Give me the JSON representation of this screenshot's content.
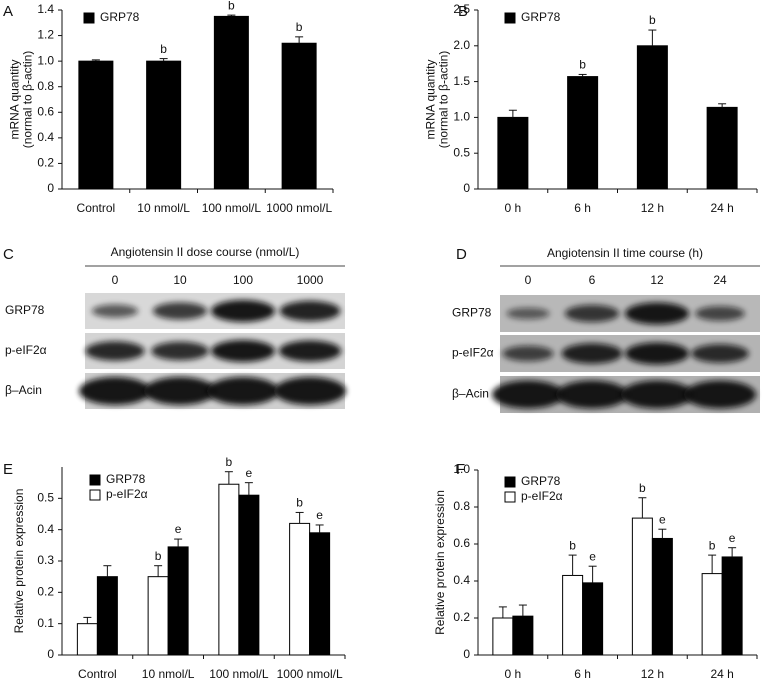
{
  "chart_data": [
    {
      "type": "bar",
      "label": "A",
      "ylabel": [
        "mRNA quantity",
        "(normal to β-actin)"
      ],
      "categories": [
        "Control",
        "10 nmol/L",
        "100 nmol/L",
        "1000 nmol/L"
      ],
      "series": [
        {
          "name": "GRP78",
          "color": "#000000",
          "values": [
            1.0,
            1.0,
            1.35,
            1.14
          ],
          "errors": [
            0.01,
            0.02,
            0.01,
            0.05
          ],
          "annotations": [
            null,
            "b",
            "b",
            "b"
          ]
        }
      ],
      "ylim": [
        0,
        1.4
      ],
      "yticks": [
        0,
        0.2,
        0.4,
        0.6,
        0.8,
        {
          "value": 1,
          "label": "1.0"
        },
        1.2,
        1.4
      ]
    },
    {
      "type": "bar",
      "label": "B",
      "ylabel": [
        "mRNA quantity",
        "(normal to β-actin)"
      ],
      "categories": [
        "0 h",
        "6 h",
        "12 h",
        "24 h"
      ],
      "series": [
        {
          "name": "GRP78",
          "color": "#000000",
          "values": [
            1.0,
            1.57,
            2.0,
            1.14
          ],
          "errors": [
            0.1,
            0.03,
            0.22,
            0.05
          ],
          "annotations": [
            null,
            "b",
            "b",
            null
          ]
        }
      ],
      "ylim": [
        0,
        2.5
      ],
      "yticks": [
        0,
        0.5,
        {
          "value": 1,
          "label": "1.0"
        },
        1.5,
        {
          "value": 2,
          "label": "2.0"
        },
        2.5
      ]
    },
    {
      "type": "bar",
      "label": "E",
      "ylabel": [
        "Relative protein expression"
      ],
      "categories": [
        "Control",
        "10 nmol/L",
        "100 nmol/L",
        "1000 nmol/L"
      ],
      "series": [
        {
          "name": "p-eIF2α",
          "color": "#ffffff",
          "values": [
            0.1,
            0.25,
            0.545,
            0.42
          ],
          "errors": [
            0.02,
            0.035,
            0.04,
            0.035
          ],
          "annotations": [
            null,
            "b",
            "b",
            "b"
          ]
        },
        {
          "name": "GRP78",
          "color": "#000000",
          "values": [
            0.25,
            0.345,
            0.51,
            0.39
          ],
          "errors": [
            0.035,
            0.025,
            0.04,
            0.025
          ],
          "annotations": [
            null,
            "e",
            "e",
            "e"
          ]
        }
      ],
      "ylim": [
        0,
        0.6
      ],
      "yticks": [
        0,
        0.1,
        0.2,
        0.3,
        0.4,
        0.5
      ]
    },
    {
      "type": "bar",
      "label": "F",
      "ylabel": [
        "Relative protein expression"
      ],
      "categories": [
        "0 h",
        "6 h",
        "12 h",
        "24 h"
      ],
      "series": [
        {
          "name": "p-eIF2α",
          "color": "#ffffff",
          "values": [
            0.2,
            0.43,
            0.74,
            0.44
          ],
          "errors": [
            0.06,
            0.11,
            0.11,
            0.1
          ],
          "annotations": [
            null,
            "b",
            "b",
            "b"
          ]
        },
        {
          "name": "GRP78",
          "color": "#000000",
          "values": [
            0.21,
            0.39,
            0.63,
            0.53
          ],
          "errors": [
            0.06,
            0.09,
            0.05,
            0.05
          ],
          "annotations": [
            null,
            "e",
            "e",
            "e"
          ]
        }
      ],
      "ylim": [
        0,
        1.0
      ],
      "yticks": [
        0,
        0.2,
        0.4,
        0.6,
        0.8,
        {
          "value": 1,
          "label": "1.0"
        }
      ]
    }
  ],
  "blots": [
    {
      "label": "C",
      "title": "Angiotensin II dose course (nmol/L)",
      "lanes": [
        "0",
        "10",
        "100",
        "1000"
      ],
      "rows": [
        "GRP78",
        "p-eIF2α",
        "β–Acin"
      ]
    },
    {
      "label": "D",
      "title": "Angiotensin II time course (h)",
      "lanes": [
        "0",
        "6",
        "12",
        "24"
      ],
      "rows": [
        "GRP78",
        "p-eIF2α",
        "β–Acin"
      ]
    }
  ]
}
